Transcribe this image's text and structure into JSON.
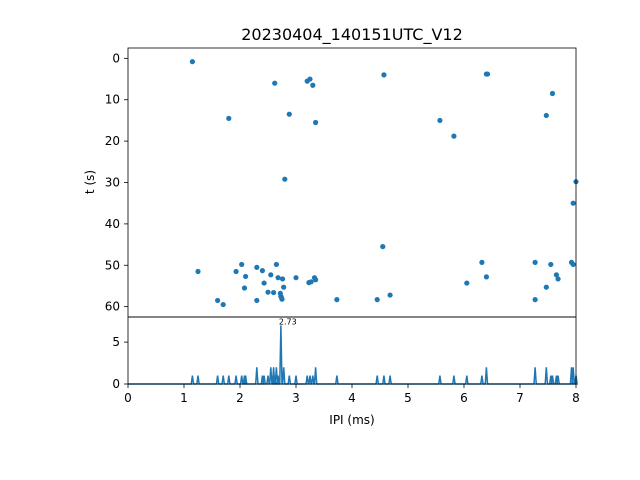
{
  "chart_data": [
    {
      "type": "scatter",
      "title": "20230404_140151UTC_V12",
      "xlabel": "",
      "ylabel": "t (s)",
      "xlim": [
        0,
        8
      ],
      "ylim": [
        62.5,
        -2.5
      ],
      "y_inverted": true,
      "yticks": [
        "0",
        "10",
        "20",
        "30",
        "40",
        "50",
        "60"
      ],
      "color": "#1f77b4",
      "points": [
        [
          1.15,
          0.8
        ],
        [
          2.62,
          6.0
        ],
        [
          3.2,
          5.5
        ],
        [
          3.25,
          5.0
        ],
        [
          3.3,
          6.5
        ],
        [
          4.57,
          4.0
        ],
        [
          6.4,
          3.8
        ],
        [
          6.42,
          3.8
        ],
        [
          1.8,
          14.5
        ],
        [
          2.88,
          13.5
        ],
        [
          3.35,
          15.5
        ],
        [
          5.57,
          15.0
        ],
        [
          5.82,
          18.8
        ],
        [
          7.47,
          13.8
        ],
        [
          7.58,
          8.5
        ],
        [
          2.8,
          29.2
        ],
        [
          8.0,
          29.8
        ],
        [
          7.95,
          35.0
        ],
        [
          4.55,
          45.5
        ],
        [
          1.25,
          51.5
        ],
        [
          1.93,
          51.5
        ],
        [
          2.03,
          49.8
        ],
        [
          2.1,
          52.7
        ],
        [
          2.08,
          55.5
        ],
        [
          2.3,
          50.5
        ],
        [
          2.4,
          51.3
        ],
        [
          2.43,
          54.3
        ],
        [
          2.5,
          56.5
        ],
        [
          2.55,
          52.3
        ],
        [
          2.6,
          56.6
        ],
        [
          2.65,
          49.8
        ],
        [
          2.68,
          53.0
        ],
        [
          2.72,
          56.8
        ],
        [
          2.73,
          57.5
        ],
        [
          2.74,
          57.8
        ],
        [
          2.75,
          58.2
        ],
        [
          2.76,
          53.3
        ],
        [
          2.78,
          55.3
        ],
        [
          2.3,
          58.5
        ],
        [
          1.6,
          58.5
        ],
        [
          1.7,
          59.5
        ],
        [
          3.0,
          53.0
        ],
        [
          3.23,
          54.2
        ],
        [
          3.27,
          54.0
        ],
        [
          3.33,
          53.0
        ],
        [
          3.35,
          53.5
        ],
        [
          3.73,
          58.3
        ],
        [
          4.45,
          58.3
        ],
        [
          4.68,
          57.2
        ],
        [
          6.05,
          54.3
        ],
        [
          6.32,
          49.3
        ],
        [
          6.4,
          52.8
        ],
        [
          7.27,
          49.3
        ],
        [
          7.27,
          58.3
        ],
        [
          7.47,
          55.3
        ],
        [
          7.55,
          49.8
        ],
        [
          7.65,
          52.3
        ],
        [
          7.68,
          53.3
        ],
        [
          7.92,
          49.3
        ],
        [
          7.95,
          49.8
        ]
      ]
    },
    {
      "type": "line",
      "xlabel": "IPI (ms)",
      "ylabel": "",
      "xlim": [
        0,
        8
      ],
      "ylim": [
        0,
        8
      ],
      "xticks": [
        "0",
        "1",
        "2",
        "3",
        "4",
        "5",
        "6",
        "7",
        "8"
      ],
      "yticks": [
        "0",
        "5"
      ],
      "color": "#1f77b4",
      "peak_annotation": {
        "text": "2.73",
        "x": 2.73,
        "y": 7
      },
      "spikes": [
        [
          1.15,
          1
        ],
        [
          1.25,
          1
        ],
        [
          1.6,
          1
        ],
        [
          1.7,
          1
        ],
        [
          1.8,
          1
        ],
        [
          1.93,
          1
        ],
        [
          2.03,
          1
        ],
        [
          2.08,
          1
        ],
        [
          2.1,
          1
        ],
        [
          2.3,
          2
        ],
        [
          2.4,
          1
        ],
        [
          2.43,
          1
        ],
        [
          2.5,
          1
        ],
        [
          2.55,
          2
        ],
        [
          2.6,
          2
        ],
        [
          2.62,
          1
        ],
        [
          2.65,
          2
        ],
        [
          2.68,
          1
        ],
        [
          2.73,
          7
        ],
        [
          2.78,
          2
        ],
        [
          2.88,
          1
        ],
        [
          3.0,
          1
        ],
        [
          3.2,
          1
        ],
        [
          3.25,
          1
        ],
        [
          3.3,
          1
        ],
        [
          3.35,
          2
        ],
        [
          3.73,
          1
        ],
        [
          4.45,
          1
        ],
        [
          4.57,
          1
        ],
        [
          4.68,
          1
        ],
        [
          5.57,
          1
        ],
        [
          5.82,
          1
        ],
        [
          6.05,
          1
        ],
        [
          6.32,
          1
        ],
        [
          6.4,
          2
        ],
        [
          7.27,
          2
        ],
        [
          7.47,
          2
        ],
        [
          7.55,
          1
        ],
        [
          7.58,
          1
        ],
        [
          7.65,
          1
        ],
        [
          7.68,
          1
        ],
        [
          7.92,
          2
        ],
        [
          7.95,
          2
        ],
        [
          8.0,
          1
        ]
      ]
    }
  ]
}
